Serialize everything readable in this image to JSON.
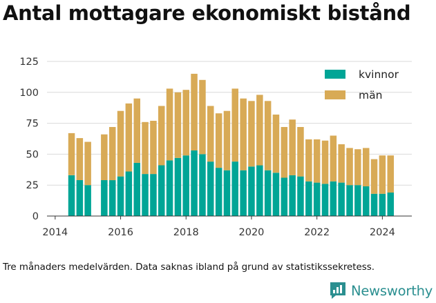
{
  "title": "Antal mottagare ekonomiskt bistånd",
  "footnote": "Tre månaders medelvärden. Data saknas ibland på grund av statistikssekretess.",
  "brand": {
    "name": "Newsworthy",
    "logo_icon": "newsworthy-logo-icon",
    "color": "#2b8f90"
  },
  "chart_data": {
    "type": "bar",
    "stacked": true,
    "x": [
      2014.5,
      2014.75,
      2015.0,
      2015.5,
      2015.75,
      2016.0,
      2016.25,
      2016.5,
      2016.75,
      2017.0,
      2017.25,
      2017.5,
      2017.75,
      2018.0,
      2018.25,
      2018.5,
      2018.75,
      2019.0,
      2019.25,
      2019.5,
      2019.75,
      2020.0,
      2020.25,
      2020.5,
      2020.75,
      2021.0,
      2021.25,
      2021.5,
      2021.75,
      2022.0,
      2022.25,
      2022.5,
      2022.75,
      2023.0,
      2023.25,
      2023.5,
      2023.75,
      2024.0,
      2024.25
    ],
    "series": [
      {
        "name": "kvinnor",
        "color": "#00a596",
        "values": [
          33,
          29,
          25,
          29,
          29,
          32,
          36,
          43,
          34,
          34,
          41,
          45,
          47,
          49,
          53,
          50,
          44,
          39,
          37,
          44,
          37,
          40,
          41,
          37,
          35,
          31,
          33,
          32,
          28,
          27,
          26,
          28,
          27,
          25,
          25,
          24,
          18,
          18,
          19
        ]
      },
      {
        "name": "män",
        "color": "#d8aa56",
        "values": [
          34,
          34,
          35,
          37,
          43,
          53,
          55,
          52,
          42,
          43,
          48,
          58,
          53,
          53,
          62,
          60,
          45,
          44,
          48,
          59,
          58,
          53,
          57,
          56,
          47,
          41,
          45,
          40,
          34,
          35,
          35,
          37,
          31,
          30,
          29,
          31,
          28,
          31,
          30
        ]
      }
    ],
    "x_ticks": [
      "2014",
      "2016",
      "2018",
      "2020",
      "2022",
      "2024"
    ],
    "y_ticks": [
      "0",
      "25",
      "50",
      "75",
      "100",
      "125"
    ],
    "xlim": [
      2013.75,
      2024.9
    ],
    "ylim": [
      0,
      130
    ],
    "grid": "horizontal",
    "legend_position": "top-right"
  }
}
